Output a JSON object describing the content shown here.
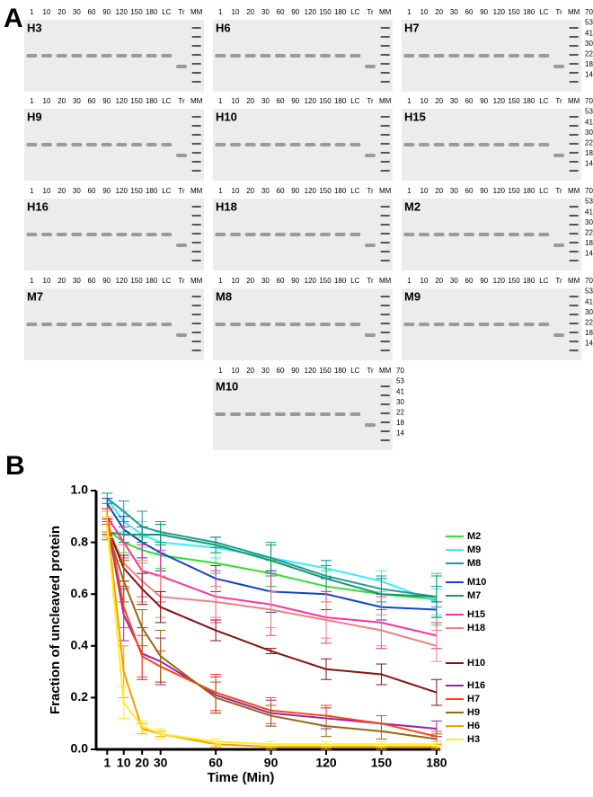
{
  "panel_labels": {
    "a": "A",
    "b": "B"
  },
  "gels": {
    "lanes": [
      "1",
      "10",
      "20",
      "30",
      "60",
      "90",
      "120",
      "150",
      "180",
      "LC",
      "Tr",
      "MM"
    ],
    "ladder": [
      "70",
      "53",
      "41",
      "30",
      "22",
      "18",
      "14"
    ],
    "names": [
      "H3",
      "H6",
      "H7",
      "H9",
      "H10",
      "H15",
      "H16",
      "H18",
      "M2",
      "M7",
      "M8",
      "M9",
      "M10"
    ]
  },
  "chart_data": {
    "type": "line",
    "x_label": "Time (Min)",
    "y_label": "Fraction of uncleaved protein",
    "x": [
      1,
      10,
      20,
      30,
      60,
      90,
      120,
      150,
      180
    ],
    "xlim": [
      -5,
      182
    ],
    "xticks": [
      1,
      10,
      20,
      30,
      60,
      90,
      120,
      150,
      180
    ],
    "ylim": [
      0,
      1
    ],
    "yticks": [
      {
        "value": 0,
        "label": "0.0"
      },
      0.2,
      0.4,
      0.6,
      0.8,
      {
        "value": 1,
        "label": "1.0"
      }
    ],
    "series": [
      {
        "name": "M2",
        "color": "#33dd33",
        "values": [
          0.85,
          0.8,
          0.77,
          0.75,
          0.72,
          0.68,
          0.63,
          0.6,
          0.58
        ],
        "errors": [
          0.03,
          0.04,
          0.05,
          0.05,
          0.04,
          0.05,
          0.06,
          0.06,
          0.1
        ]
      },
      {
        "name": "M9",
        "color": "#33eeff",
        "values": [
          0.97,
          0.88,
          0.83,
          0.8,
          0.78,
          0.74,
          0.7,
          0.65,
          0.57
        ],
        "errors": [
          0.02,
          0.04,
          0.05,
          0.04,
          0.04,
          0.05,
          0.03,
          0.04,
          0.05
        ]
      },
      {
        "name": "M8",
        "color": "#229999",
        "values": [
          0.97,
          0.92,
          0.86,
          0.84,
          0.8,
          0.74,
          0.67,
          0.62,
          0.59
        ],
        "errors": [
          0.02,
          0.04,
          0.06,
          0.04,
          0.02,
          0.06,
          0.06,
          0.05,
          0.04
        ]
      },
      {
        "name": "M10",
        "color": "#1144cc",
        "values": [
          0.95,
          0.85,
          0.8,
          0.76,
          0.66,
          0.61,
          0.6,
          0.55,
          0.54
        ],
        "errors": [
          0.02,
          0.05,
          0.06,
          0.07,
          0.05,
          0.08,
          0.06,
          0.05,
          0.03
        ]
      },
      {
        "name": "M7",
        "color": "#119966",
        "values": [
          0.84,
          0.83,
          0.83,
          0.83,
          0.79,
          0.73,
          0.66,
          0.6,
          0.59
        ],
        "errors": [
          0.03,
          0.03,
          0.03,
          0.04,
          0.03,
          0.06,
          0.05,
          0.06,
          0.08
        ]
      },
      {
        "name": "H15",
        "color": "#ff3399",
        "values": [
          0.9,
          0.8,
          0.69,
          0.67,
          0.59,
          0.56,
          0.51,
          0.49,
          0.44
        ],
        "errors": [
          0.03,
          0.06,
          0.1,
          0.1,
          0.1,
          0.12,
          0.1,
          0.1,
          0.05
        ]
      },
      {
        "name": "H18",
        "color": "#f08080",
        "values": [
          0.86,
          0.72,
          0.65,
          0.59,
          0.57,
          0.54,
          0.5,
          0.46,
          0.4
        ],
        "errors": [
          0.04,
          0.07,
          0.08,
          0.08,
          0.06,
          0.07,
          0.07,
          0.06,
          0.06
        ]
      },
      {
        "name": "H10",
        "color": "#881111",
        "values": [
          0.86,
          0.7,
          0.62,
          0.55,
          0.46,
          0.38,
          0.31,
          0.29,
          0.22
        ],
        "errors": [
          0.03,
          0.05,
          0.06,
          0.06,
          0.04,
          0.01,
          0.04,
          0.04,
          0.05
        ]
      },
      {
        "name": "H16",
        "color": "#9922aa",
        "values": [
          0.88,
          0.52,
          0.37,
          0.34,
          0.21,
          0.14,
          0.12,
          0.1,
          0.08
        ],
        "errors": [
          0.04,
          0.1,
          0.1,
          0.09,
          0.07,
          0.05,
          0.04,
          0.03,
          0.03
        ]
      },
      {
        "name": "H7",
        "color": "#ff4411",
        "values": [
          0.9,
          0.55,
          0.36,
          0.32,
          0.22,
          0.15,
          0.13,
          0.1,
          0.05
        ],
        "errors": [
          0.03,
          0.08,
          0.08,
          0.06,
          0.07,
          0.05,
          0.04,
          0.03,
          0.02
        ]
      },
      {
        "name": "H9",
        "color": "#996611",
        "values": [
          0.85,
          0.65,
          0.47,
          0.36,
          0.2,
          0.13,
          0.09,
          0.07,
          0.04
        ],
        "errors": [
          0.03,
          0.08,
          0.07,
          0.1,
          0.06,
          0.04,
          0.04,
          0.03,
          0.02
        ]
      },
      {
        "name": "H6",
        "color": "#ff9900",
        "values": [
          0.88,
          0.3,
          0.08,
          0.06,
          0.02,
          0.01,
          0.01,
          0.01,
          0.01
        ],
        "errors": [
          0.04,
          0.1,
          0.02,
          0.01,
          0.01,
          0.01,
          0.01,
          0.01,
          0.01
        ]
      },
      {
        "name": "H3",
        "color": "#ffee22",
        "values": [
          0.86,
          0.18,
          0.09,
          0.06,
          0.03,
          0.02,
          0.02,
          0.02,
          0.02
        ],
        "errors": [
          0.04,
          0.06,
          0.02,
          0.02,
          0.01,
          0.01,
          0.01,
          0.01,
          0.01
        ]
      }
    ]
  }
}
